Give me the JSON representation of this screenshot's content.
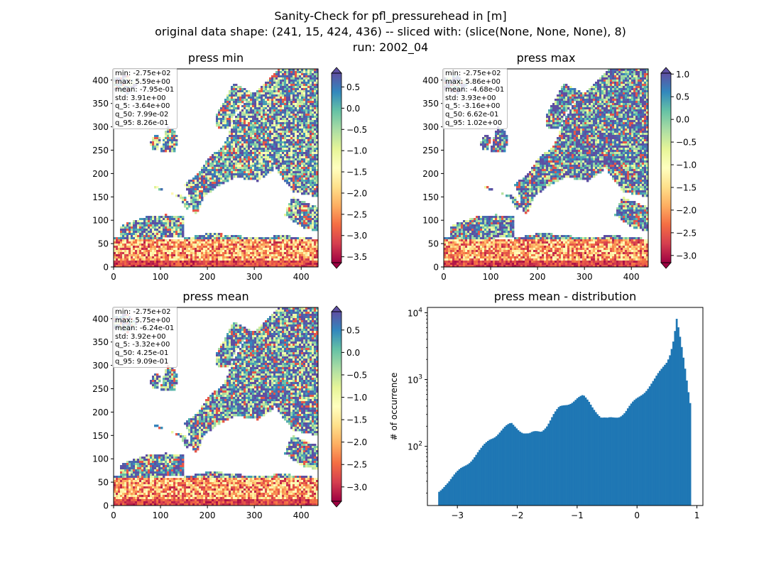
{
  "figure": {
    "suptitle_lines": [
      "Sanity-Check for pfl_pressurehead in [m]",
      "original data shape: (241, 15, 424, 436) -- sliced with: (slice(None, None, None), 8)",
      "run: 2002_04"
    ]
  },
  "colormap": {
    "name": "Spectral",
    "stops": [
      "#9e0142",
      "#d53e4f",
      "#f46d43",
      "#fdae61",
      "#fee08b",
      "#ffffbf",
      "#e6f598",
      "#abdda4",
      "#66c2a5",
      "#3288bd",
      "#5e4fa2"
    ]
  },
  "chart_data": [
    {
      "type": "heatmap",
      "id": "press-min",
      "title": "press min",
      "xlim": [
        0,
        436
      ],
      "ylim": [
        0,
        424
      ],
      "xticks": [
        0,
        100,
        200,
        300,
        400
      ],
      "yticks": [
        0,
        50,
        100,
        150,
        200,
        250,
        300,
        350,
        400
      ],
      "colorbar": {
        "vmin": -3.64,
        "vmax": 0.826,
        "ticks": [
          0.5,
          0.0,
          -0.5,
          -1.0,
          -1.5,
          -2.0,
          -2.5,
          -3.0,
          -3.5
        ],
        "tick_labels": [
          "0.5",
          "0.0",
          "−0.5",
          "−1.0",
          "−1.5",
          "−2.0",
          "−2.5",
          "−3.0",
          "−3.5"
        ]
      },
      "stats": [
        "min: -2.75e+02",
        "max: 5.59e+00",
        "mean: -7.95e-01",
        "std: 3.91e+00",
        "q_5: -3.64e+00",
        "q_50: 7.99e-02",
        "q_95: 8.26e-01"
      ],
      "q50": 0.0799
    },
    {
      "type": "heatmap",
      "id": "press-max",
      "title": "press max",
      "xlim": [
        0,
        436
      ],
      "ylim": [
        0,
        424
      ],
      "xticks": [
        0,
        100,
        200,
        300,
        400
      ],
      "yticks": [
        0,
        50,
        100,
        150,
        200,
        250,
        300,
        350,
        400
      ],
      "colorbar": {
        "vmin": -3.16,
        "vmax": 1.02,
        "ticks": [
          1.0,
          0.5,
          0.0,
          -0.5,
          -1.0,
          -1.5,
          -2.0,
          -2.5,
          -3.0
        ],
        "tick_labels": [
          "1.0",
          "0.5",
          "0.0",
          "−0.5",
          "−1.0",
          "−1.5",
          "−2.0",
          "−2.5",
          "−3.0"
        ]
      },
      "stats": [
        "min: -2.75e+02",
        "max: 5.86e+00",
        "mean: -4.68e-01",
        "std: 3.93e+00",
        "q_5: -3.16e+00",
        "q_50: 6.62e-01",
        "q_95: 1.02e+00"
      ],
      "q50": 0.662
    },
    {
      "type": "heatmap",
      "id": "press-mean",
      "title": "press mean",
      "xlim": [
        0,
        436
      ],
      "ylim": [
        0,
        424
      ],
      "xticks": [
        0,
        100,
        200,
        300,
        400
      ],
      "yticks": [
        0,
        50,
        100,
        150,
        200,
        250,
        300,
        350,
        400
      ],
      "colorbar": {
        "vmin": -3.32,
        "vmax": 0.909,
        "ticks": [
          0.5,
          0.0,
          -0.5,
          -1.0,
          -1.5,
          -2.0,
          -2.5,
          -3.0
        ],
        "tick_labels": [
          "0.5",
          "0.0",
          "−0.5",
          "−1.0",
          "−1.5",
          "−2.0",
          "−2.5",
          "−3.0"
        ]
      },
      "stats": [
        "min: -2.75e+02",
        "max: 5.75e+00",
        "mean: -6.24e-01",
        "std: 3.92e+00",
        "q_5: -3.32e+00",
        "q_50: 4.25e-01",
        "q_95: 9.09e-01"
      ],
      "q50": 0.425
    },
    {
      "type": "bar",
      "id": "press-mean-distribution",
      "title": "press mean - distribution",
      "ylabel": "# of occurrence",
      "xlabel": "",
      "yscale": "log",
      "xlim": [
        -3.5,
        1.1
      ],
      "ylim": [
        13,
        12000
      ],
      "xticks": [
        -3,
        -2,
        -1,
        0,
        1
      ],
      "xtick_labels": [
        "−3",
        "−2",
        "−1",
        "0",
        "1"
      ],
      "yticks": [
        100,
        1000,
        10000
      ],
      "ytick_labels": [
        "10^2",
        "10^3",
        "10^4"
      ],
      "bar_color": "#1f77b4",
      "bins": {
        "start": -3.32,
        "end": 0.9,
        "count": 150
      },
      "profile": [
        [
          -3.32,
          20
        ],
        [
          -3.2,
          28
        ],
        [
          -3.0,
          40
        ],
        [
          -2.8,
          60
        ],
        [
          -2.6,
          90
        ],
        [
          -2.45,
          130
        ],
        [
          -2.3,
          165
        ],
        [
          -2.2,
          190
        ],
        [
          -2.1,
          215
        ],
        [
          -2.0,
          190
        ],
        [
          -1.9,
          165
        ],
        [
          -1.8,
          150
        ],
        [
          -1.6,
          170
        ],
        [
          -1.5,
          215
        ],
        [
          -1.4,
          290
        ],
        [
          -1.3,
          370
        ],
        [
          -1.2,
          420
        ],
        [
          -1.1,
          470
        ],
        [
          -1.0,
          520
        ],
        [
          -0.9,
          550
        ],
        [
          -0.8,
          460
        ],
        [
          -0.7,
          360
        ],
        [
          -0.6,
          270
        ],
        [
          -0.5,
          250
        ],
        [
          -0.4,
          265
        ],
        [
          -0.3,
          290
        ],
        [
          -0.2,
          330
        ],
        [
          -0.1,
          410
        ],
        [
          0.0,
          510
        ],
        [
          0.1,
          640
        ],
        [
          0.2,
          800
        ],
        [
          0.3,
          1000
        ],
        [
          0.4,
          1350
        ],
        [
          0.5,
          1900
        ],
        [
          0.55,
          2500
        ],
        [
          0.6,
          3700
        ],
        [
          0.64,
          6000
        ],
        [
          0.66,
          8200
        ],
        [
          0.7,
          5200
        ],
        [
          0.75,
          2700
        ],
        [
          0.8,
          1400
        ],
        [
          0.85,
          700
        ],
        [
          0.9,
          380
        ]
      ]
    }
  ]
}
